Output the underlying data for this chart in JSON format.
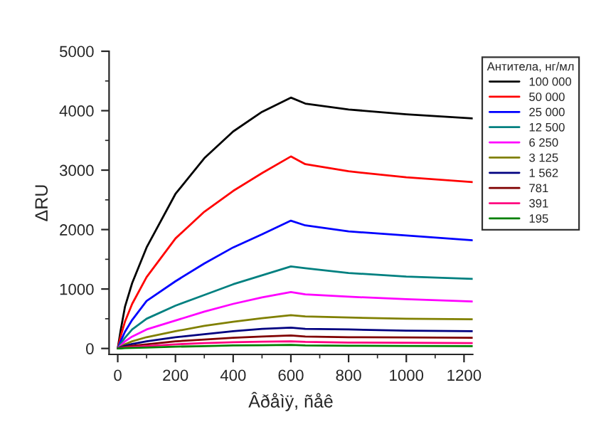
{
  "chart_data": {
    "type": "line",
    "xlabel": "Âðåìÿ, ñåê",
    "ylabel": "ΔRU",
    "legend_title": "Антитела, нг/мл",
    "legend": "top right",
    "grid": false,
    "marker": "none",
    "line_style": "solid",
    "xlim": [
      -30,
      1230
    ],
    "xticks": [
      0,
      200,
      400,
      600,
      800,
      1000,
      1200
    ],
    "ylim": [
      -100,
      5000
    ],
    "yticks": [
      0,
      1000,
      2000,
      3000,
      4000,
      5000
    ],
    "x": [
      0,
      10,
      25,
      50,
      100,
      200,
      300,
      400,
      500,
      600,
      650,
      800,
      1000,
      1230
    ],
    "series": [
      {
        "name": "100 000",
        "color": "#000000",
        "values": [
          0,
          300,
          700,
          1100,
          1700,
          2600,
          3200,
          3650,
          3980,
          4220,
          4120,
          4020,
          3940,
          3870
        ]
      },
      {
        "name": "50 000",
        "color": "#ff0000",
        "values": [
          0,
          200,
          450,
          750,
          1200,
          1850,
          2300,
          2650,
          2950,
          3230,
          3100,
          2980,
          2880,
          2800
        ]
      },
      {
        "name": "25 000",
        "color": "#0000ff",
        "values": [
          0,
          120,
          280,
          480,
          800,
          1130,
          1430,
          1700,
          1920,
          2150,
          2070,
          1970,
          1900,
          1820
        ]
      },
      {
        "name": "12 500",
        "color": "#008080",
        "values": [
          0,
          80,
          180,
          320,
          500,
          720,
          900,
          1080,
          1230,
          1380,
          1350,
          1270,
          1210,
          1170
        ]
      },
      {
        "name": "6 250",
        "color": "#ff00ff",
        "values": [
          0,
          50,
          120,
          200,
          320,
          470,
          620,
          750,
          860,
          950,
          910,
          870,
          830,
          790
        ]
      },
      {
        "name": "3 125",
        "color": "#808000",
        "values": [
          0,
          30,
          70,
          120,
          190,
          290,
          380,
          450,
          510,
          560,
          540,
          520,
          500,
          490
        ]
      },
      {
        "name": "1 562",
        "color": "#000080",
        "values": [
          0,
          20,
          45,
          75,
          120,
          190,
          240,
          290,
          330,
          350,
          330,
          320,
          300,
          290
        ]
      },
      {
        "name": "781",
        "color": "#800000",
        "values": [
          0,
          10,
          25,
          45,
          70,
          120,
          150,
          180,
          200,
          220,
          200,
          190,
          185,
          180
        ]
      },
      {
        "name": "391",
        "color": "#ff0080",
        "values": [
          0,
          5,
          15,
          25,
          40,
          70,
          90,
          105,
          115,
          120,
          110,
          100,
          95,
          90
        ]
      },
      {
        "name": "195",
        "color": "#008000",
        "values": [
          0,
          0,
          5,
          10,
          15,
          30,
          40,
          50,
          55,
          60,
          50,
          45,
          42,
          40
        ]
      }
    ]
  }
}
